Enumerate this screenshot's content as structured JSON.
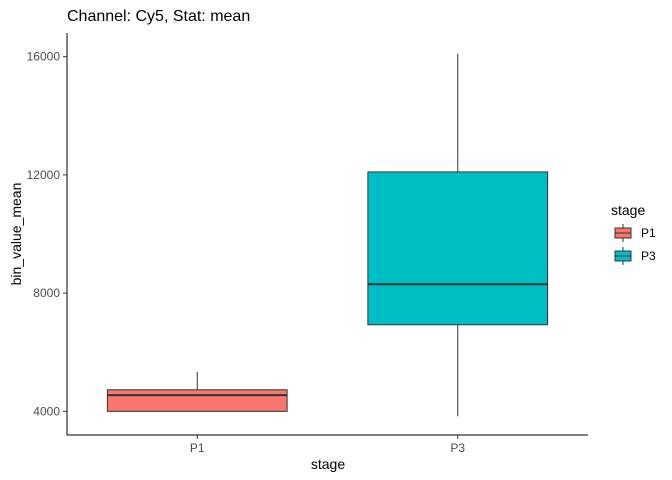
{
  "chart_data": {
    "type": "boxplot",
    "title": "Channel: Cy5, Stat: mean",
    "xlabel": "stage",
    "ylabel": "bin_value_mean",
    "categories": [
      "P1",
      "P3"
    ],
    "ylim": [
      3200,
      16800
    ],
    "yticks": [
      4000,
      8000,
      12000,
      16000
    ],
    "yticks_labels": [
      "4000",
      "8000",
      "12000",
      "16000"
    ],
    "grid": false,
    "legend": {
      "title": "stage",
      "position": "right",
      "entries": [
        "P1",
        "P3"
      ]
    },
    "series": [
      {
        "name": "P1",
        "color": "#F8766D",
        "min": 4000,
        "q1": 4000,
        "median": 4550,
        "q3": 4730,
        "max": 5330
      },
      {
        "name": "P3",
        "color": "#00BFC4",
        "min": 3830,
        "q1": 6930,
        "median": 8300,
        "q3": 12100,
        "max": 16100
      }
    ]
  }
}
